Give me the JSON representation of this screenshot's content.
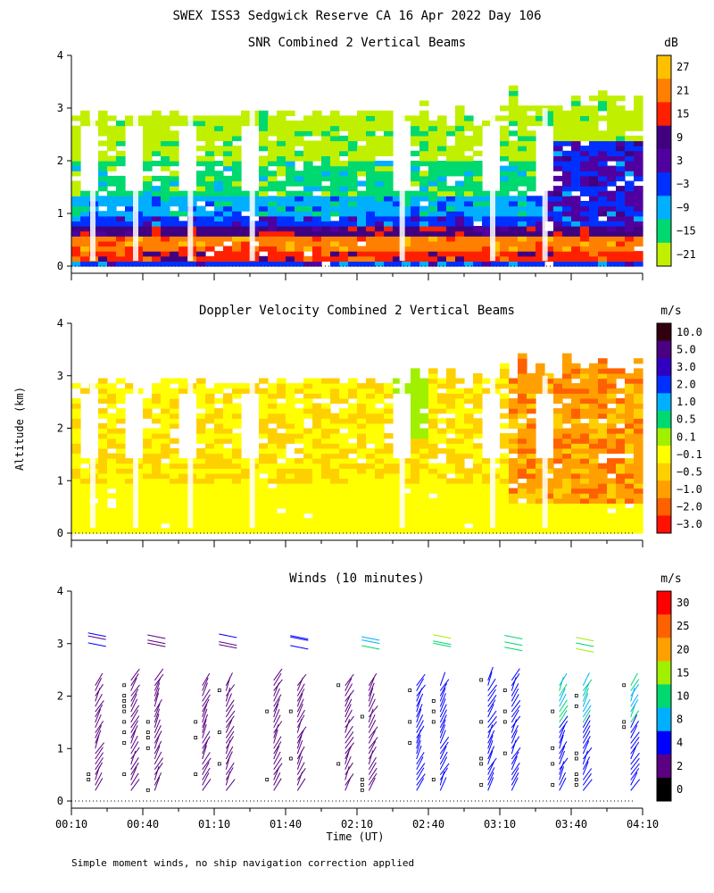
{
  "figure": {
    "title": "SWEX ISS3 Sedgwick Reserve CA  16 Apr 2022 Day 106",
    "xlabel": "Time (UT)",
    "ylabel": "Altitude (km)",
    "footnote": "Simple moment winds, no ship navigation correction applied",
    "x_ticks": [
      "00:10",
      "00:40",
      "01:10",
      "01:40",
      "02:10",
      "02:40",
      "03:10",
      "03:40",
      "04:10"
    ],
    "y_ticks": [
      "0",
      "1",
      "2",
      "3",
      "4"
    ]
  },
  "chart_data": [
    {
      "type": "heatmap",
      "title": "SNR Combined 2 Vertical Beams",
      "colorbar_unit": "dB",
      "colorbar_labels": [
        "27",
        "21",
        "15",
        "9",
        "3",
        "−3",
        "−9",
        "−15",
        "−21"
      ],
      "colorbar_colors": [
        "#ffc000",
        "#ff8000",
        "#ff2000",
        "#400080",
        "#5000a0",
        "#0030ff",
        "#00b0ff",
        "#00d870",
        "#c0f000"
      ],
      "x_range": [
        "00:10",
        "04:10"
      ],
      "ylim": [
        0,
        4
      ],
      "data_gaps_x": [
        "00:19",
        "00:37",
        "01:00",
        "01:26",
        "02:29",
        "03:07",
        "03:29"
      ],
      "profile_snr_db": [
        {
          "altitude_km": 0.2,
          "snr_db": 12
        },
        {
          "altitude_km": 0.4,
          "snr_db": 20
        },
        {
          "altitude_km": 0.6,
          "snr_db": 6
        },
        {
          "altitude_km": 0.8,
          "snr_db": -8
        },
        {
          "altitude_km": 1.0,
          "snr_db": -10
        },
        {
          "altitude_km": 1.3,
          "snr_db": -14
        },
        {
          "altitude_km": 1.7,
          "snr_db": -17
        },
        {
          "altitude_km": 2.3,
          "snr_db": -20
        },
        {
          "altitude_km": 2.8,
          "snr_db": -20
        }
      ]
    },
    {
      "type": "heatmap",
      "title": "Doppler Velocity Combined 2 Vertical Beams",
      "colorbar_unit": "m/s",
      "colorbar_labels": [
        "10.0",
        "5.0",
        "3.0",
        "2.0",
        "1.0",
        "0.5",
        "0.1",
        "−0.1",
        "−0.5",
        "−1.0",
        "−2.0",
        "−3.0"
      ],
      "colorbar_colors": [
        "#300010",
        "#4a0080",
        "#3000c0",
        "#0030ff",
        "#00b0ff",
        "#00d870",
        "#a0f000",
        "#ffff00",
        "#ffd000",
        "#ffa000",
        "#ff6000",
        "#ff1000"
      ],
      "x_range": [
        "00:10",
        "04:10"
      ],
      "ylim": [
        0,
        4
      ],
      "profile_velocity_ms": [
        {
          "altitude_km": 0.3,
          "velocity": -0.2
        },
        {
          "altitude_km": 0.8,
          "velocity": -0.3
        },
        {
          "altitude_km": 1.2,
          "velocity": -0.7
        },
        {
          "altitude_km": 1.8,
          "velocity": -0.7
        },
        {
          "altitude_km": 2.3,
          "velocity": -0.6
        },
        {
          "altitude_km": 2.8,
          "velocity": -0.2
        }
      ]
    },
    {
      "type": "scatter",
      "title": "Winds (10 minutes)",
      "colorbar_unit": "m/s",
      "colorbar_labels": [
        "30",
        "25",
        "20",
        "15",
        "10",
        "8",
        "4",
        "2",
        "0"
      ],
      "colorbar_colors": [
        "#ff0000",
        "#ff6000",
        "#ffa000",
        "#a0f000",
        "#00d870",
        "#00b0ff",
        "#0000ff",
        "#5a0080",
        "#000000"
      ],
      "x_range": [
        "00:10",
        "04:10"
      ],
      "ylim": [
        0,
        4
      ],
      "wind_profile_times": [
        "00:20",
        "00:35",
        "00:45",
        "01:05",
        "01:15",
        "01:35",
        "01:45",
        "02:05",
        "02:15",
        "02:35",
        "02:45",
        "03:05",
        "03:15",
        "03:35",
        "03:45",
        "04:05"
      ]
    }
  ]
}
